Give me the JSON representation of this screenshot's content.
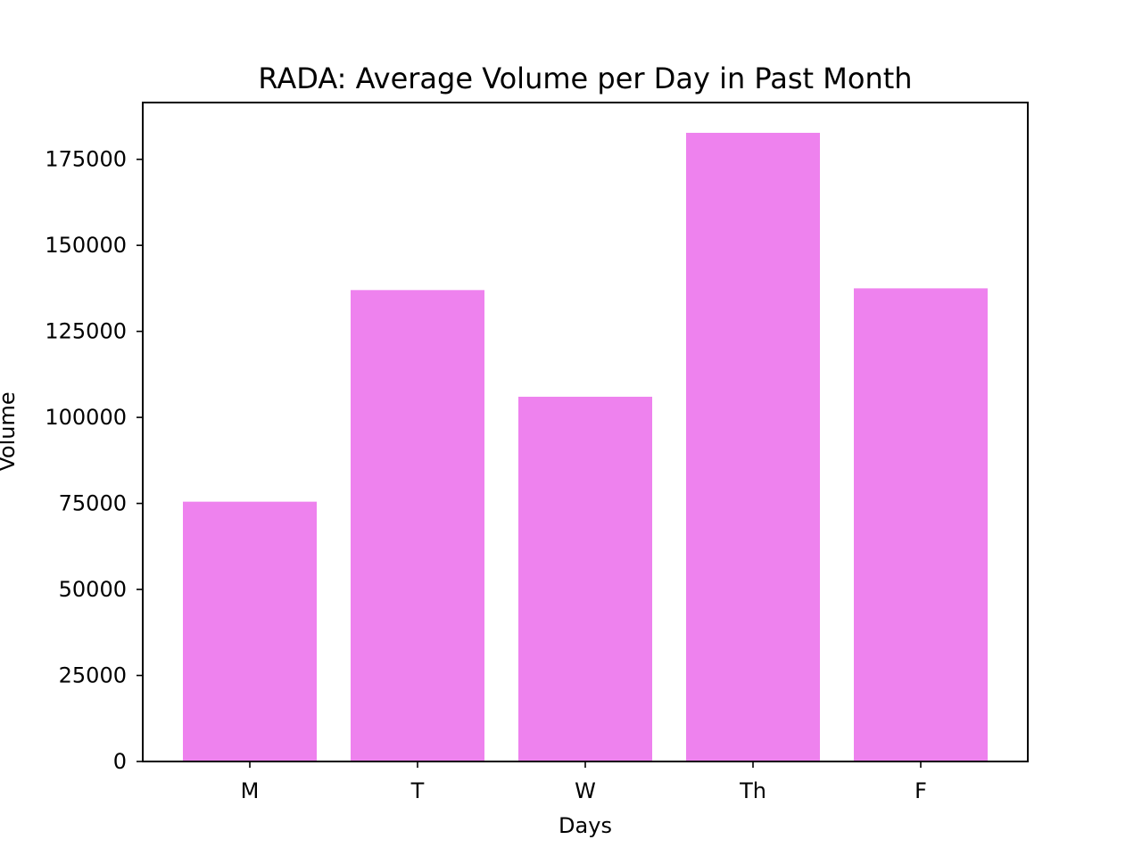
{
  "chart_data": {
    "type": "bar",
    "title": "RADA: Average Volume per Day in Past Month",
    "xlabel": "Days",
    "ylabel": "Volume",
    "categories": [
      "M",
      "T",
      "W",
      "Th",
      "F"
    ],
    "values": [
      75500,
      137000,
      106000,
      182700,
      137500
    ],
    "ylim": [
      0,
      191500
    ],
    "yticks": [
      0,
      25000,
      50000,
      75000,
      100000,
      125000,
      150000,
      175000
    ],
    "bar_color": "#ee82ee",
    "grid": false,
    "legend": "none"
  }
}
